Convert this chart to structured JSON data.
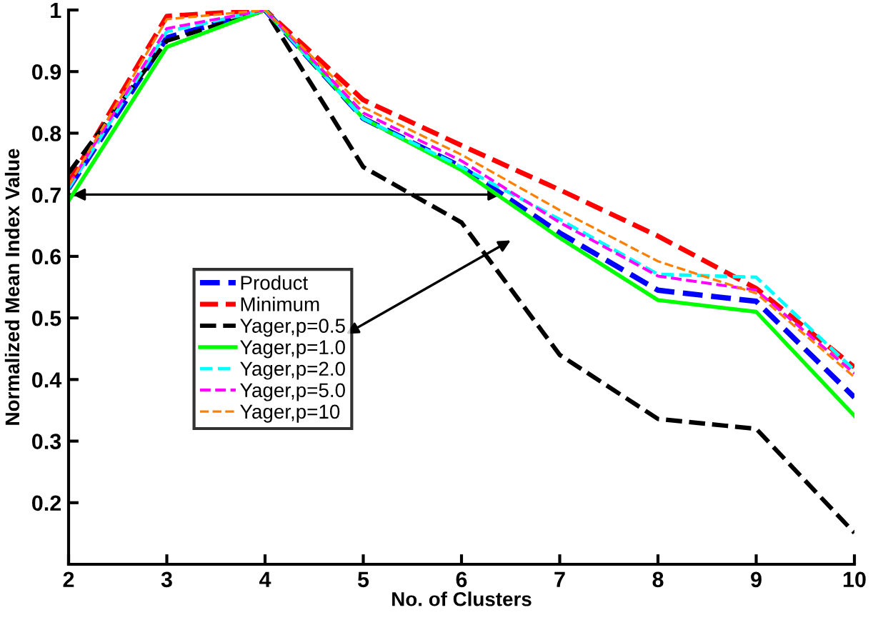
{
  "chart_data": {
    "type": "line",
    "xlabel": "No. of Clusters",
    "ylabel": "Normalized Mean Index Value",
    "x": [
      2,
      3,
      4,
      5,
      6,
      7,
      8,
      9,
      10
    ],
    "series": [
      {
        "name": "Product",
        "color": "#0000ff",
        "line_style": "dashed",
        "values": [
          0.71,
          0.955,
          1,
          0.824,
          0.745,
          0.638,
          0.545,
          0.527,
          0.371
        ]
      },
      {
        "name": "Minimum",
        "color": "#ff0000",
        "line_style": "dashed",
        "values": [
          0.72,
          0.99,
          1,
          0.854,
          0.78,
          0.708,
          0.633,
          0.548,
          0.42
        ]
      },
      {
        "name": "Yager,p=0.5",
        "color": "#000000",
        "line_style": "dashed",
        "values": [
          0.735,
          0.95,
          1,
          0.745,
          0.655,
          0.44,
          0.336,
          0.32,
          0.151
        ]
      },
      {
        "name": "Yager,p=1.0",
        "color": "#00ff00",
        "line_style": "solid",
        "values": [
          0.69,
          0.94,
          1,
          0.824,
          0.74,
          0.63,
          0.529,
          0.51,
          0.341
        ]
      },
      {
        "name": "Yager,p=2.0",
        "color": "#00ffff",
        "line_style": "dashed",
        "values": [
          0.71,
          0.965,
          1,
          0.824,
          0.745,
          0.66,
          0.571,
          0.566,
          0.415
        ]
      },
      {
        "name": "Yager,p=5.0",
        "color": "#ff00ff",
        "line_style": "dashed",
        "values": [
          0.715,
          0.97,
          1,
          0.833,
          0.755,
          0.655,
          0.568,
          0.545,
          0.41
        ]
      },
      {
        "name": "Yager,p=10",
        "color": "#ff8000",
        "line_style": "dashed",
        "values": [
          0.715,
          0.985,
          1,
          0.842,
          0.765,
          0.675,
          0.592,
          0.54,
          0.404
        ]
      }
    ],
    "xlim": [
      2,
      10
    ],
    "xticks": [
      2,
      3,
      4,
      5,
      6,
      7,
      8,
      9,
      10
    ],
    "ylim": [
      0.1,
      1
    ],
    "yticks": [
      0.2,
      0.3,
      0.4,
      0.5,
      0.6,
      0.7,
      0.8,
      0.9,
      1
    ],
    "grid": false,
    "legend": "left",
    "marker": "none"
  }
}
